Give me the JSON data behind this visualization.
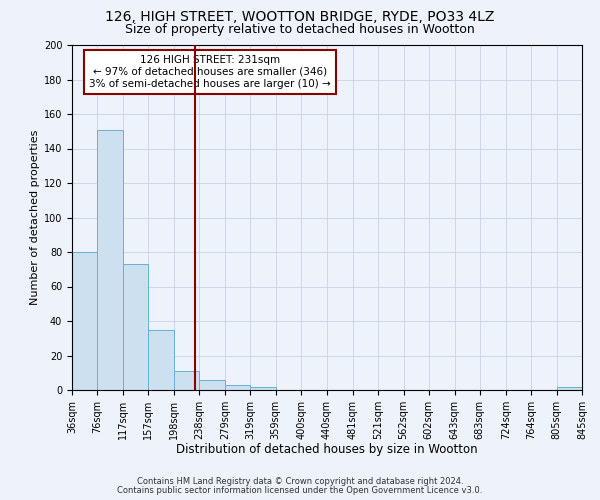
{
  "title1": "126, HIGH STREET, WOOTTON BRIDGE, RYDE, PO33 4LZ",
  "title2": "Size of property relative to detached houses in Wootton",
  "xlabel": "Distribution of detached houses by size in Wootton",
  "ylabel": "Number of detached properties",
  "bin_edges": [
    36,
    76,
    117,
    157,
    198,
    238,
    279,
    319,
    359,
    400,
    440,
    481,
    521,
    562,
    602,
    643,
    683,
    724,
    764,
    805,
    845
  ],
  "bar_heights": [
    80,
    151,
    73,
    35,
    11,
    6,
    3,
    2,
    0,
    0,
    0,
    0,
    0,
    0,
    0,
    0,
    0,
    0,
    0,
    2
  ],
  "bar_color": "#cce0f0",
  "bar_edgecolor": "#6aafd6",
  "vline_x": 231,
  "vline_color": "#880000",
  "annotation_text": "126 HIGH STREET: 231sqm\n← 97% of detached houses are smaller (346)\n3% of semi-detached houses are larger (10) →",
  "annotation_fontsize": 7.5,
  "annotation_box_color": "white",
  "annotation_box_edgecolor": "#880000",
  "ylim": [
    0,
    200
  ],
  "yticks": [
    0,
    20,
    40,
    60,
    80,
    100,
    120,
    140,
    160,
    180,
    200
  ],
  "tick_labels": [
    "36sqm",
    "76sqm",
    "117sqm",
    "157sqm",
    "198sqm",
    "238sqm",
    "279sqm",
    "319sqm",
    "359sqm",
    "400sqm",
    "440sqm",
    "481sqm",
    "521sqm",
    "562sqm",
    "602sqm",
    "643sqm",
    "683sqm",
    "724sqm",
    "764sqm",
    "805sqm",
    "845sqm"
  ],
  "footer1": "Contains HM Land Registry data © Crown copyright and database right 2024.",
  "footer2": "Contains public sector information licensed under the Open Government Licence v3.0.",
  "bg_color": "#eef2fa",
  "grid_color": "#c8d4e8",
  "title_fontsize": 10,
  "subtitle_fontsize": 9,
  "xlabel_fontsize": 8.5,
  "ylabel_fontsize": 8,
  "tick_fontsize": 7
}
